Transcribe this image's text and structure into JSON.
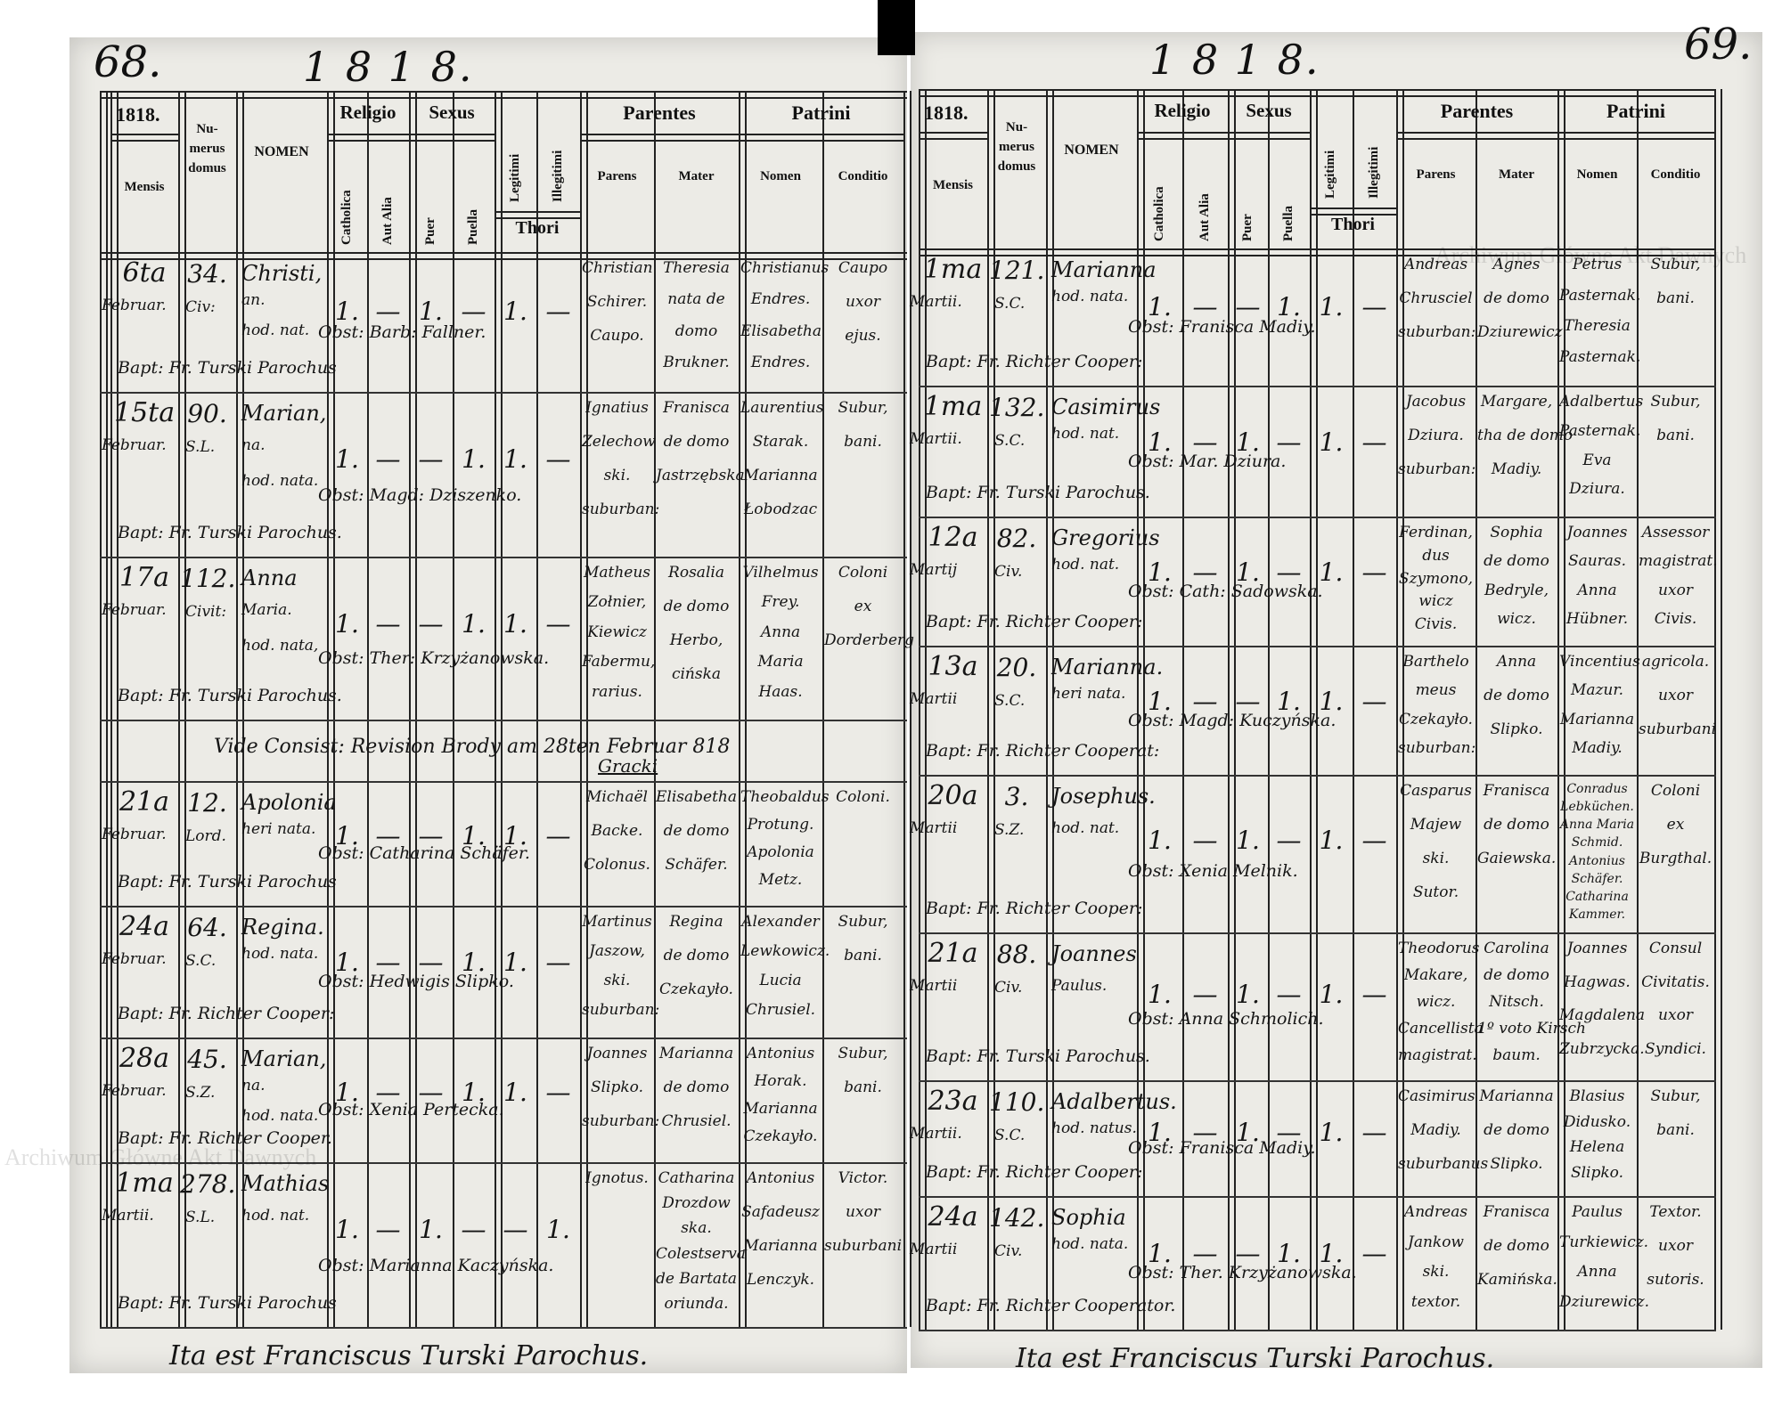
{
  "header": {
    "year_label": "1818.",
    "columns": {
      "mensis": "Mensis",
      "numerus_domus": [
        "Nu-",
        "merus",
        "domus"
      ],
      "nomen": "NOMEN",
      "religio": "Religio",
      "catholica": "Catholica",
      "aut_alia": "Aut Alia",
      "sexus": "Sexus",
      "puer": "Puer",
      "puella": "Puella",
      "legitimi": "Legitimi",
      "illegitimi": "Illegitimi",
      "thori": "Thori",
      "parentes": "Parentes",
      "parens": "Parens",
      "mater": "Mater",
      "patrini": "Patrini",
      "patrini_nomen": "Nomen",
      "conditio": "Conditio"
    }
  },
  "watermark": "Archiwum Główne Akt Dawnych",
  "pages": [
    {
      "folio": "68.",
      "running_year": "1 8 1 8.",
      "entries": [
        {
          "day": "6ta",
          "month": "Februar.",
          "domus": "34.",
          "street": "Civ:",
          "nomen": [
            "Christi,",
            "an.",
            "hod. nat."
          ],
          "marks": [
            "1.",
            "—",
            "1.",
            "—",
            "1.",
            "—"
          ],
          "parens": [
            "Christian",
            "Schirer.",
            "Caupo."
          ],
          "mater": [
            "Theresia",
            "nata de",
            "domo",
            "Brukner."
          ],
          "patrini": [
            "Christianus",
            "Endres.",
            "Elisabetha",
            "Endres."
          ],
          "conditio": [
            "Caupo",
            "uxor",
            "ejus."
          ],
          "obstetrix": "Obst: Barb: Fallner.",
          "baptizans": "Bapt: Fr. Turski Parochus"
        },
        {
          "day": "15ta",
          "month": "Februar.",
          "domus": "90.",
          "street": "S.L.",
          "nomen": [
            "Marian,",
            "na.",
            "hod. nata."
          ],
          "marks": [
            "1.",
            "—",
            "—",
            "1.",
            "1.",
            "—"
          ],
          "parens": [
            "Ignatius",
            "Zelechow",
            "ski.",
            "suburban:"
          ],
          "mater": [
            "Franisca",
            "de domo",
            "Jastrzębska"
          ],
          "patrini": [
            "Laurentius",
            "Starak.",
            "Marianna",
            "Łobodzac"
          ],
          "conditio": [
            "Subur,",
            "bani."
          ],
          "obstetrix": "Obst: Magd: Dziszenko.",
          "baptizans": "Bapt: Fr. Turski Parochus."
        },
        {
          "day": "17a",
          "month": "Februar.",
          "domus": "112.",
          "street": "Civit:",
          "nomen": [
            "Anna",
            "Maria.",
            "hod. nata,"
          ],
          "marks": [
            "1.",
            "—",
            "—",
            "1.",
            "1.",
            "—"
          ],
          "parens": [
            "Matheus",
            "Zołnier,",
            "Kiewicz",
            "Fabermu,",
            "rarius."
          ],
          "mater": [
            "Rosalia",
            "de domo",
            "Herbo,",
            "cińska"
          ],
          "patrini": [
            "Vilhelmus",
            "Frey.",
            "Anna",
            "Maria",
            "Haas."
          ],
          "conditio": [
            "Coloni",
            "ex",
            "Dorderberg"
          ],
          "obstetrix": "Obst: Ther: Krzyżanowska.",
          "baptizans": "Bapt: Fr. Turski Parochus."
        },
        {
          "note": "Vide Consist: Revision Brody am 28ten Februar 818",
          "signature": "Gracki"
        },
        {
          "day": "21a",
          "month": "Februar.",
          "domus": "12.",
          "street": "Lord.",
          "nomen": [
            "Apolonia",
            "heri nata."
          ],
          "marks": [
            "1.",
            "—",
            "—",
            "1.",
            "1.",
            "—"
          ],
          "parens": [
            "Michaël",
            "Backe.",
            "Colonus."
          ],
          "mater": [
            "Elisabetha",
            "de domo",
            "Schäfer."
          ],
          "patrini": [
            "Theobaldus",
            "Protung.",
            "Apolonia",
            "Metz."
          ],
          "conditio": [
            "Coloni."
          ],
          "obstetrix": "Obst: Catharina Schäfer.",
          "baptizans": "Bapt: Fr. Turski Parochus"
        },
        {
          "day": "24a",
          "month": "Februar.",
          "domus": "64.",
          "street": "S.C.",
          "nomen": [
            "Regina.",
            "hod. nata."
          ],
          "marks": [
            "1.",
            "—",
            "—",
            "1.",
            "1.",
            "—"
          ],
          "parens": [
            "Martinus",
            "Jaszow,",
            "ski.",
            "suburban:"
          ],
          "mater": [
            "Regina",
            "de domo",
            "Czekayło."
          ],
          "patrini": [
            "Alexander",
            "Lewkowicz.",
            "Lucia",
            "Chrusiel."
          ],
          "conditio": [
            "Subur,",
            "bani."
          ],
          "obstetrix": "Obst: Hedwigis Slipko.",
          "baptizans": "Bapt: Fr. Richter Cooper:"
        },
        {
          "day": "28a",
          "month": "Februar.",
          "domus": "45.",
          "street": "S.Z.",
          "nomen": [
            "Marian,",
            "na.",
            "hod. nata."
          ],
          "marks": [
            "1.",
            "—",
            "—",
            "1.",
            "1.",
            "—"
          ],
          "parens": [
            "Joannes",
            "Slipko.",
            "suburban:"
          ],
          "mater": [
            "Marianna",
            "de domo",
            "Chrusiel."
          ],
          "patrini": [
            "Antonius",
            "Horak.",
            "Marianna",
            "Czekayło."
          ],
          "conditio": [
            "Subur,",
            "bani."
          ],
          "obstetrix": "Obst: Xenia Pertecka.",
          "baptizans": "Bapt: Fr. Richter Cooper."
        },
        {
          "day": "1ma",
          "month": "Martii.",
          "domus": "278.",
          "street": "S.L.",
          "nomen": [
            "Mathias",
            "hod. nat."
          ],
          "marks": [
            "1.",
            "—",
            "1.",
            "—",
            "—",
            "1."
          ],
          "parens": [
            "Ignotus."
          ],
          "mater": [
            "Catharina",
            "Drozdow",
            "ska.",
            "Colestserva",
            "de Bartata",
            "oriunda."
          ],
          "patrini": [
            "Antonius",
            "Safadeusz",
            "Marianna",
            "Lenczyk."
          ],
          "conditio": [
            "Victor.",
            "uxor",
            "suburbani"
          ],
          "obstetrix": "Obst: Marianna Kaczyńska.",
          "baptizans": "Bapt: Fr. Turski Parochus"
        }
      ],
      "closing": "Ita est Franciscus Turski Parochus."
    },
    {
      "folio": "69.",
      "running_year": "1 8 1 8.",
      "entries": [
        {
          "day": "1ma",
          "month": "Martii.",
          "domus": "121.",
          "street": "S.C.",
          "nomen": [
            "Marianna",
            "hod. nata."
          ],
          "marks": [
            "1.",
            "—",
            "—",
            "1.",
            "1.",
            "—"
          ],
          "parens": [
            "Andreas",
            "Chrusciel",
            "suburban:"
          ],
          "mater": [
            "Agnes",
            "de domo",
            "Dziurewicz"
          ],
          "patrini": [
            "Petrus",
            "Pasternak.",
            "Theresia",
            "Pasternak."
          ],
          "conditio": [
            "Subur,",
            "bani."
          ],
          "obstetrix": "Obst: Franisca Madiy.",
          "baptizans": "Bapt: Fr. Richter Cooper:"
        },
        {
          "day": "1ma",
          "month": "Martii.",
          "domus": "132.",
          "street": "S.C.",
          "nomen": [
            "Casimirus",
            "hod. nat."
          ],
          "marks": [
            "1.",
            "—",
            "1.",
            "—",
            "1.",
            "—"
          ],
          "parens": [
            "Jacobus",
            "Dziura.",
            "suburban:"
          ],
          "mater": [
            "Margare,",
            "tha de domo",
            "Madiy."
          ],
          "patrini": [
            "Adalbertus",
            "Pasternak.",
            "Eva",
            "Dziura."
          ],
          "conditio": [
            "Subur,",
            "bani."
          ],
          "obstetrix": "Obst: Mar. Dziura.",
          "baptizans": "Bapt: Fr. Turski Parochus."
        },
        {
          "day": "12a",
          "month": "Martij",
          "domus": "82.",
          "street": "Civ.",
          "nomen": [
            "Gregorius",
            "hod. nat."
          ],
          "marks": [
            "1.",
            "—",
            "1.",
            "—",
            "1.",
            "—"
          ],
          "parens": [
            "Ferdinan,",
            "dus",
            "Szymono,",
            "wicz",
            "Civis."
          ],
          "mater": [
            "Sophia",
            "de domo",
            "Bedryle,",
            "wicz."
          ],
          "patrini": [
            "Joannes",
            "Sauras.",
            "Anna",
            "Hübner."
          ],
          "conditio": [
            "Assessor",
            "magistrat.",
            "uxor",
            "Civis."
          ],
          "obstetrix": "Obst: Cath: Sadowska.",
          "baptizans": "Bapt: Fr. Richter Cooper:"
        },
        {
          "day": "13a",
          "month": "Martii",
          "domus": "20.",
          "street": "S.C.",
          "nomen": [
            "Marianna.",
            "heri nata."
          ],
          "marks": [
            "1.",
            "—",
            "—",
            "1.",
            "1.",
            "—"
          ],
          "parens": [
            "Barthelo",
            "meus",
            "Czekayło.",
            "suburban:"
          ],
          "mater": [
            "Anna",
            "de domo",
            "Slipko."
          ],
          "patrini": [
            "Vincentius",
            "Mazur.",
            "Marianna",
            "Madiy."
          ],
          "conditio": [
            "agricola.",
            "uxor",
            "suburbani"
          ],
          "obstetrix": "Obst: Magd: Kuczyńska.",
          "baptizans": "Bapt: Fr. Richter Cooperat:"
        },
        {
          "day": "20a",
          "month": "Martii",
          "domus": "3.",
          "street": "S.Z.",
          "nomen": [
            "Josephus.",
            "hod. nat."
          ],
          "marks": [
            "1.",
            "—",
            "1.",
            "—",
            "1.",
            "—"
          ],
          "parens": [
            "Casparus",
            "Majew",
            "ski.",
            "Sutor."
          ],
          "mater": [
            "Franisca",
            "de domo",
            "Gaiewska."
          ],
          "patrini": [
            "Conradus",
            "Lebküchen.",
            "Anna Maria",
            "Schmid.",
            "Antonius",
            "Schäfer.",
            "Catharina",
            "Kammer."
          ],
          "conditio": [
            "Coloni",
            "ex",
            "Burgthal."
          ],
          "obstetrix": "Obst: Xenia Melnik.",
          "baptizans": "Bapt: Fr. Richter Cooper:"
        },
        {
          "day": "21a",
          "month": "Martii",
          "domus": "88.",
          "street": "Civ.",
          "nomen": [
            "Joannes",
            "Paulus."
          ],
          "marks": [
            "1.",
            "—",
            "1.",
            "—",
            "1.",
            "—"
          ],
          "parens": [
            "Theodorus",
            "Makare,",
            "wicz.",
            "Cancellista",
            "magistrat."
          ],
          "mater": [
            "Carolina",
            "de domo",
            "Nitsch.",
            "1º voto Kirsch",
            "baum."
          ],
          "patrini": [
            "Joannes",
            "Hagwas.",
            "Magdalena",
            "Zubrzycka."
          ],
          "conditio": [
            "Consul",
            "Civitatis.",
            "uxor",
            "Syndici."
          ],
          "obstetrix": "Obst: Anna Schmolich.",
          "baptizans": "Bapt: Fr. Turski Parochus."
        },
        {
          "day": "23a",
          "month": "Martii.",
          "domus": "110.",
          "street": "S.C.",
          "nomen": [
            "Adalbertus.",
            "hod. natus."
          ],
          "marks": [
            "1.",
            "—",
            "1.",
            "—",
            "1.",
            "—"
          ],
          "parens": [
            "Casimirus",
            "Madiy.",
            "suburbanus"
          ],
          "mater": [
            "Marianna",
            "de domo",
            "Slipko."
          ],
          "patrini": [
            "Blasius",
            "Didusko.",
            "Helena",
            "Slipko."
          ],
          "conditio": [
            "Subur,",
            "bani."
          ],
          "obstetrix": "Obst: Franisca Madiy.",
          "baptizans": "Bapt: Fr. Richter Cooper:"
        },
        {
          "day": "24a",
          "month": "Martii",
          "domus": "142.",
          "street": "Civ.",
          "nomen": [
            "Sophia",
            "hod. nata."
          ],
          "marks": [
            "1.",
            "—",
            "—",
            "1.",
            "1.",
            "—"
          ],
          "parens": [
            "Andreas",
            "Jankow",
            "ski.",
            "textor."
          ],
          "mater": [
            "Franisca",
            "de domo",
            "Kamińska."
          ],
          "patrini": [
            "Paulus",
            "Turkiewicz.",
            "Anna",
            "Dziurewicz."
          ],
          "conditio": [
            "Textor.",
            "uxor",
            "sutoris."
          ],
          "obstetrix": "Obst: Ther. Krzyżanowska.",
          "baptizans": "Bapt: Fr. Richter Cooperator."
        }
      ],
      "closing": "Ita est Franciscus Turski Parochus."
    }
  ]
}
